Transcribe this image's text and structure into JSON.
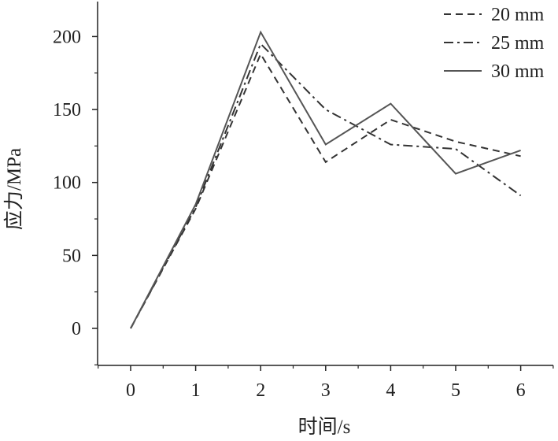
{
  "chart_data": {
    "type": "line",
    "title": "",
    "xlabel": "时间/s",
    "ylabel": "应力/MPa",
    "x": [
      0,
      1,
      2,
      3,
      4,
      5,
      6
    ],
    "xlim": [
      -0.5,
      6.5
    ],
    "ylim": [
      -25,
      225
    ],
    "xticks": [
      0,
      1,
      2,
      3,
      4,
      5,
      6
    ],
    "yticks": [
      0,
      50,
      100,
      150,
      200
    ],
    "grid": false,
    "legend_position": "top-right",
    "series": [
      {
        "name": "20 mm",
        "style": "dashed",
        "color": "#333333",
        "values": [
          0,
          82,
          188,
          114,
          143,
          128,
          118
        ]
      },
      {
        "name": "25 mm",
        "style": "dashdot",
        "color": "#333333",
        "values": [
          0,
          83,
          195,
          150,
          126,
          123,
          91
        ]
      },
      {
        "name": "30 mm",
        "style": "solid",
        "color": "#555555",
        "values": [
          0,
          85,
          203,
          126,
          154,
          106,
          122
        ]
      }
    ]
  }
}
